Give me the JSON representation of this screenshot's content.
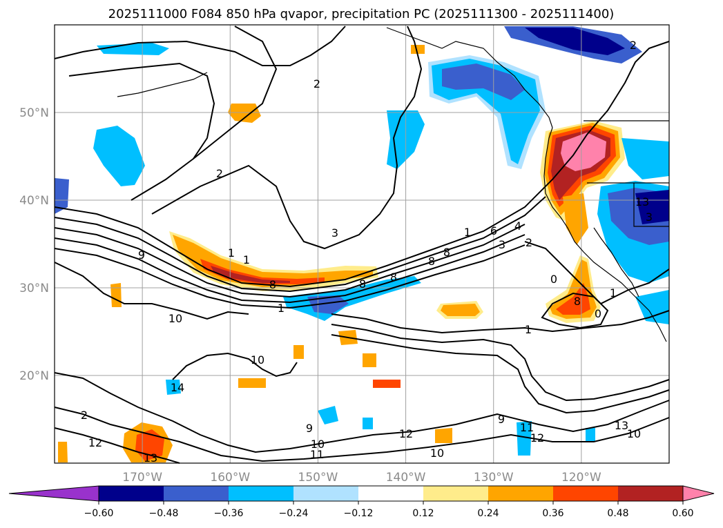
{
  "title": "2025111000 F084 850 hPa qvapor, precipitation PC (2025111300 - 2025111400)",
  "map": {
    "lon_range": [
      -180,
      -110
    ],
    "lat_range": [
      10,
      60
    ],
    "lat_labels": [
      "50°N",
      "40°N",
      "30°N",
      "20°N"
    ],
    "lat_values": [
      50,
      40,
      30,
      20
    ],
    "lon_labels": [
      "170°W",
      "160°W",
      "150°W",
      "140°W",
      "130°W",
      "120°W"
    ],
    "lon_values": [
      -170,
      -160,
      -150,
      -140,
      -130,
      -120
    ]
  },
  "colorbar": {
    "ticks": [
      "−0.60",
      "−0.48",
      "−0.36",
      "−0.24",
      "−0.12",
      "0.12",
      "0.24",
      "0.36",
      "0.48",
      "0.60"
    ],
    "colors": [
      "#9932cc",
      "#00008b",
      "#3a5fcd",
      "#00bfff",
      "#b0e2ff",
      "#ffffff",
      "#ffec8b",
      "#ffa500",
      "#ff4500",
      "#b22222",
      "#ff82ab"
    ]
  },
  "contour_labels": [
    "2",
    "2",
    "2",
    "3",
    "1",
    "1",
    "9",
    "8",
    "1",
    "10",
    "8",
    "8",
    "8",
    "1",
    "6",
    "4",
    "3",
    "2",
    "8",
    "1",
    "8",
    "0",
    "0",
    "1",
    "2",
    "12",
    "13",
    "14",
    "10",
    "9",
    "10",
    "11",
    "12",
    "10",
    "9",
    "11",
    "12",
    "13",
    "10",
    "13",
    "3"
  ],
  "colors": {
    "contour": "#000000",
    "grid": "#a0a0a0",
    "pink": "#ff82ab",
    "red": "#ff4500",
    "darkred": "#b22222",
    "orange": "#ffa500",
    "yellow": "#ffec8b",
    "lightblue": "#b0e2ff",
    "cyan": "#00bfff",
    "blue": "#3a5fcd",
    "navy": "#00008b"
  }
}
